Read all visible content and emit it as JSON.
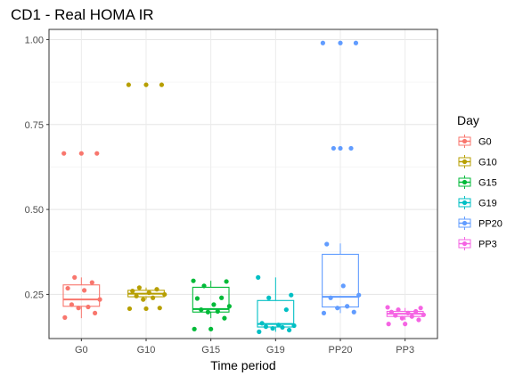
{
  "chart_data": {
    "type": "box",
    "title": "CD1 - Real HOMA IR",
    "xlabel": "Time period",
    "ylabel": "",
    "ylim": [
      0.12,
      1.03
    ],
    "yticks": [
      0.25,
      0.5,
      0.75,
      1.0
    ],
    "ytick_labels": [
      "0.25",
      "0.50",
      "0.75",
      "1.00"
    ],
    "grid": true,
    "legend": {
      "title": "Day",
      "placement": "right",
      "entries": [
        "G0",
        "G10",
        "G15",
        "G19",
        "PP20",
        "PP3"
      ]
    },
    "categories": [
      "G0",
      "G10",
      "G15",
      "G19",
      "PP20",
      "PP3"
    ],
    "colors": {
      "G0": "#F8766D",
      "G10": "#B79F00",
      "G15": "#00BA38",
      "G19": "#00BFC4",
      "PP20": "#619CFF",
      "PP3": "#F564E3"
    },
    "series": [
      {
        "name": "G0",
        "box": {
          "q1": 0.215,
          "median": 0.235,
          "q3": 0.278,
          "whisker_low": 0.18,
          "whisker_high": 0.3
        },
        "outliers": [
          0.665
        ],
        "points": [
          0.665,
          0.665,
          0.3,
          0.285,
          0.268,
          0.262,
          0.235,
          0.22,
          0.213,
          0.21,
          0.195,
          0.182
        ]
      },
      {
        "name": "G10",
        "box": {
          "q1": 0.243,
          "median": 0.252,
          "q3": 0.262,
          "whisker_low": 0.235,
          "whisker_high": 0.27
        },
        "outliers": [
          0.867,
          0.208
        ],
        "points": [
          0.867,
          0.867,
          0.27,
          0.265,
          0.26,
          0.255,
          0.25,
          0.245,
          0.24,
          0.235,
          0.21,
          0.208
        ]
      },
      {
        "name": "G15",
        "box": {
          "q1": 0.198,
          "median": 0.207,
          "q3": 0.271,
          "whisker_low": 0.18,
          "whisker_high": 0.29
        },
        "outliers": [
          0.148
        ],
        "points": [
          0.29,
          0.288,
          0.275,
          0.24,
          0.238,
          0.22,
          0.215,
          0.205,
          0.2,
          0.198,
          0.18,
          0.148
        ]
      },
      {
        "name": "G19",
        "box": {
          "q1": 0.154,
          "median": 0.163,
          "q3": 0.232,
          "whisker_low": 0.14,
          "whisker_high": 0.3
        },
        "outliers": [],
        "points": [
          0.3,
          0.248,
          0.24,
          0.205,
          0.165,
          0.16,
          0.158,
          0.155,
          0.153,
          0.15,
          0.145,
          0.14
        ]
      },
      {
        "name": "PP20",
        "box": {
          "q1": 0.213,
          "median": 0.243,
          "q3": 0.368,
          "whisker_low": 0.195,
          "whisker_high": 0.4
        },
        "outliers": [
          0.99,
          0.68
        ],
        "points": [
          0.99,
          0.99,
          0.68,
          0.68,
          0.398,
          0.275,
          0.248,
          0.24,
          0.215,
          0.21,
          0.198,
          0.195
        ]
      },
      {
        "name": "PP3",
        "box": {
          "q1": 0.185,
          "median": 0.193,
          "q3": 0.2,
          "whisker_low": 0.175,
          "whisker_high": 0.21
        },
        "outliers": [
          0.163
        ],
        "points": [
          0.212,
          0.21,
          0.205,
          0.2,
          0.198,
          0.195,
          0.19,
          0.188,
          0.185,
          0.18,
          0.175,
          0.163
        ]
      }
    ]
  }
}
